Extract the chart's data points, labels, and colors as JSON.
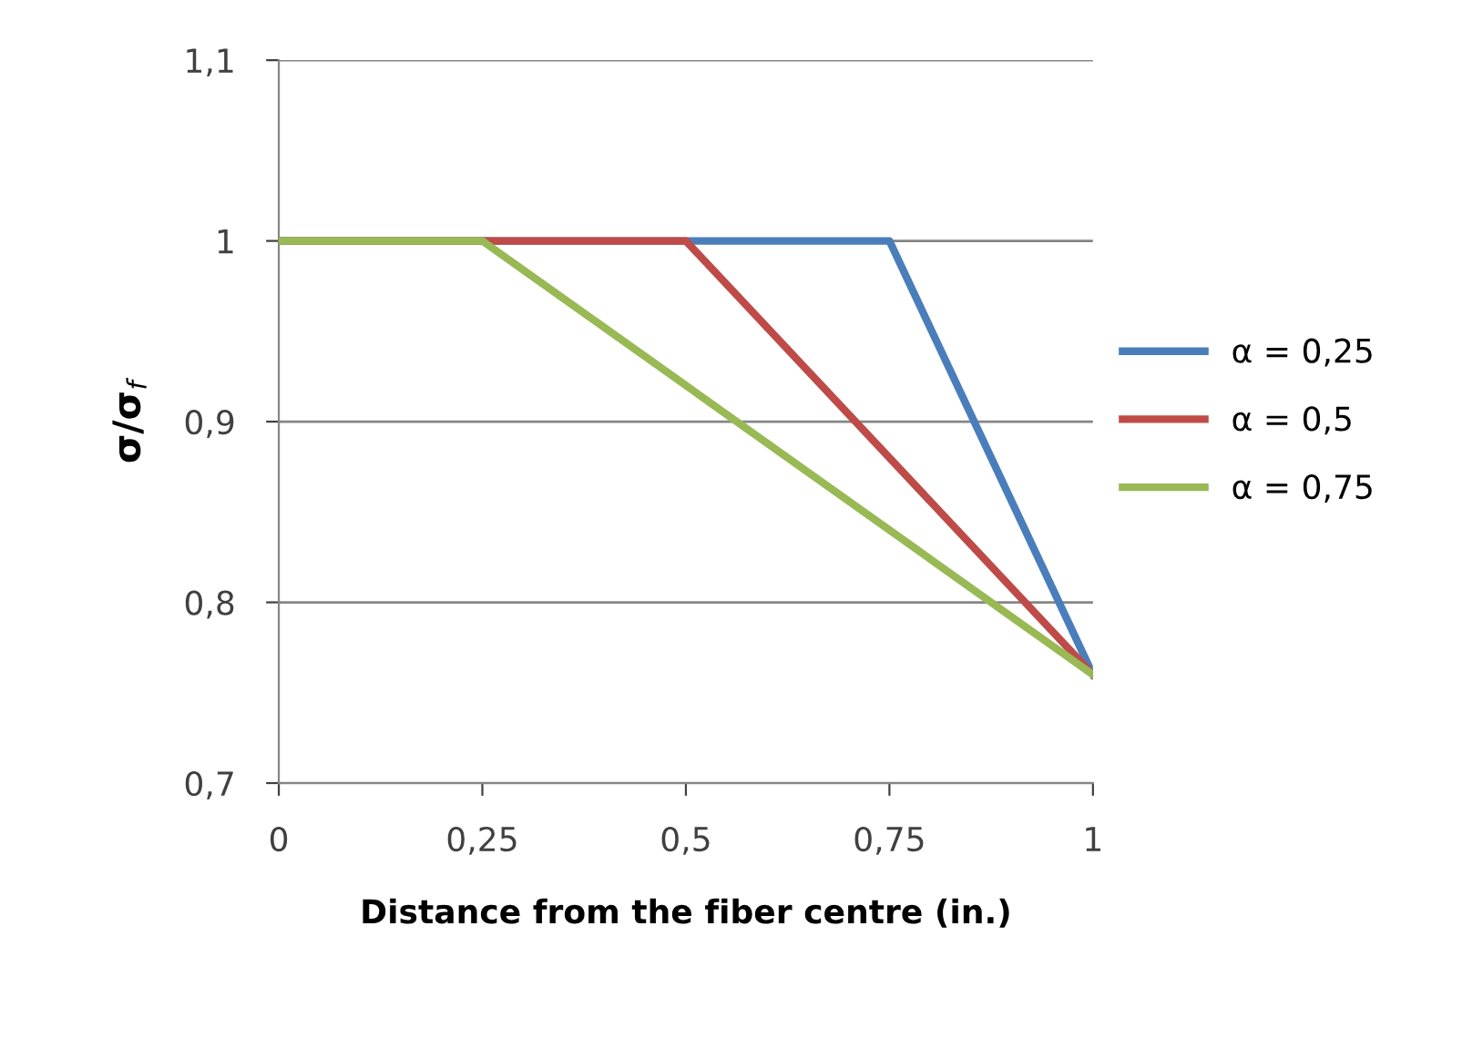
{
  "chart_data": {
    "type": "line",
    "xlabel": "Distance from the fiber centre (in.)",
    "ylabel": "σ/σ$_{f}$",
    "series": [
      {
        "name": "α = 0,25",
        "color": "#4a7ebb",
        "x": [
          0,
          0.75,
          1
        ],
        "values": [
          1,
          1,
          0.76
        ]
      },
      {
        "name": "α = 0,5",
        "color": "#be4b48",
        "x": [
          0,
          0.5,
          1
        ],
        "values": [
          1,
          1,
          0.76
        ]
      },
      {
        "name": "α = 0,75",
        "color": "#98b954",
        "x": [
          0,
          0.25,
          1
        ],
        "values": [
          1,
          1,
          0.76
        ]
      }
    ],
    "xlim": [
      0,
      1
    ],
    "ylim": [
      0.7,
      1.1
    ],
    "xticks": [
      0,
      {
        "value": 0.25,
        "label": "0,25"
      },
      {
        "value": 0.5,
        "label": "0,5"
      },
      {
        "value": 0.75,
        "label": "0,75"
      },
      1
    ],
    "yticks": [
      {
        "value": 0.7,
        "label": "0,7"
      },
      {
        "value": 0.8,
        "label": "0,8"
      },
      {
        "value": 0.9,
        "label": "0,9"
      },
      1,
      {
        "value": 1.1,
        "label": "1,1"
      }
    ],
    "grid": "y",
    "legend": "right",
    "marker": "none",
    "line_style": "solid"
  }
}
